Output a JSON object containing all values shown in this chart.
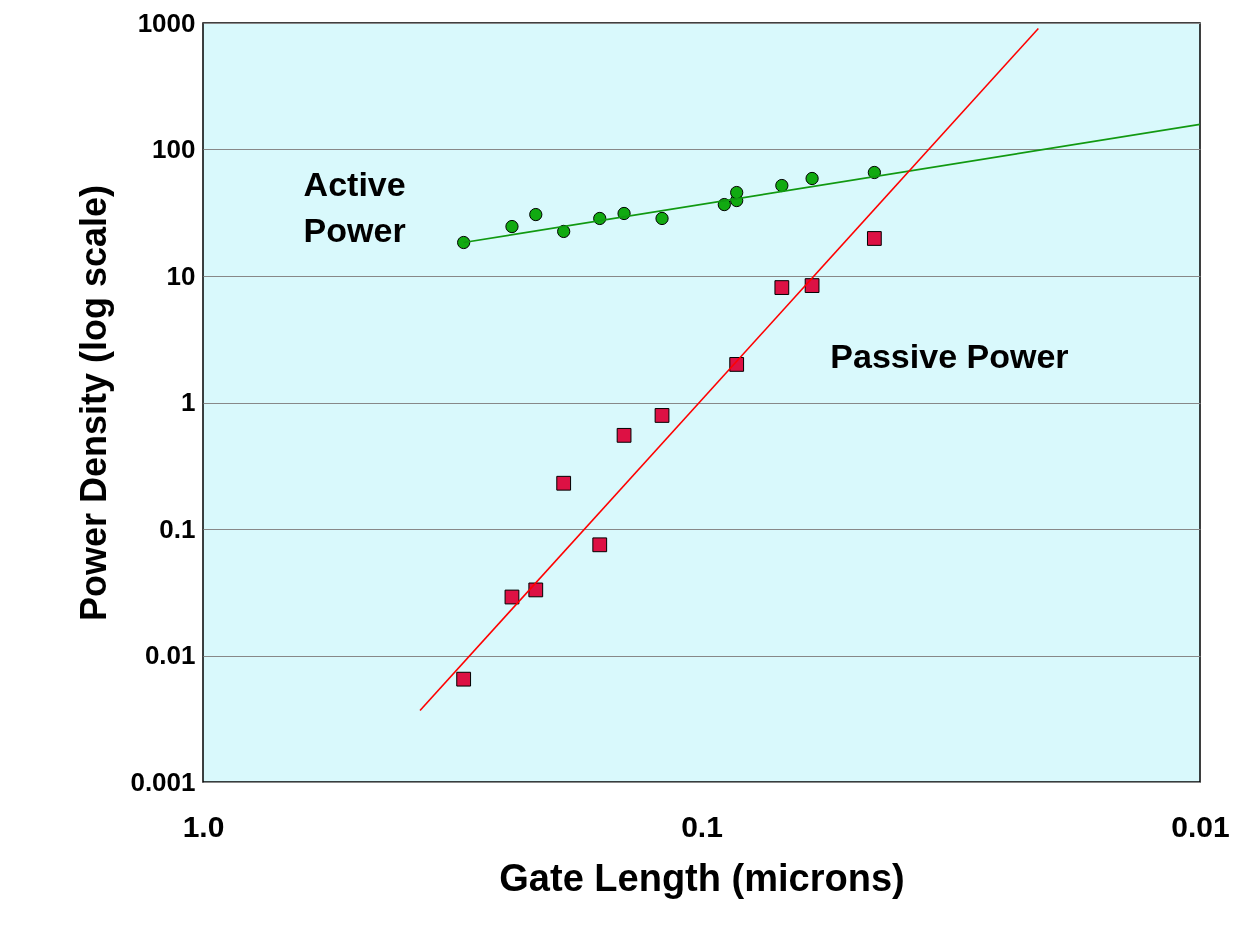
{
  "chart_data": {
    "type": "scatter",
    "xlabel": "Gate Length (microns)",
    "ylabel": "Power Density (log scale)",
    "log": "xy",
    "grid": "y",
    "xlim": [
      1,
      0.01
    ],
    "xticks": [
      {
        "value": 1,
        "label": "1.0"
      },
      0.1,
      0.01
    ],
    "ylim": [
      0.001,
      1000
    ],
    "yticks": [
      0.001,
      0.01,
      0.1,
      1,
      10,
      100,
      1000
    ],
    "series": [
      {
        "name": "Active Power",
        "type": "scatter",
        "marker": "circle",
        "color": "#11aa11",
        "x": [
          0.3,
          0.24,
          0.215,
          0.189,
          0.16,
          0.143,
          0.12,
          0.09,
          0.085,
          0.085,
          0.069,
          0.06,
          0.045
        ],
        "values": [
          18.4,
          24.6,
          30.6,
          22.5,
          28.5,
          31.2,
          28.5,
          36.7,
          39.5,
          45.7,
          51.9,
          59,
          65.8
        ]
      },
      {
        "name": "Passive Power",
        "type": "scatter",
        "marker": "square",
        "color": "#dd1144",
        "x": [
          0.3,
          0.24,
          0.215,
          0.189,
          0.16,
          0.143,
          0.12,
          0.085,
          0.069,
          0.06,
          0.045
        ],
        "values": [
          0.0065,
          0.029,
          0.033,
          0.23,
          0.075,
          0.55,
          0.79,
          2.0,
          8.1,
          8.4,
          19.8
        ]
      },
      {
        "type": "line",
        "color": "#119911",
        "x": [
          0.3,
          0.01
        ],
        "values": [
          18.4,
          158
        ]
      },
      {
        "type": "line",
        "color": "#ff0000",
        "x": [
          0.367,
          0.0211
        ],
        "values": [
          0.00367,
          905
        ]
      }
    ]
  }
}
